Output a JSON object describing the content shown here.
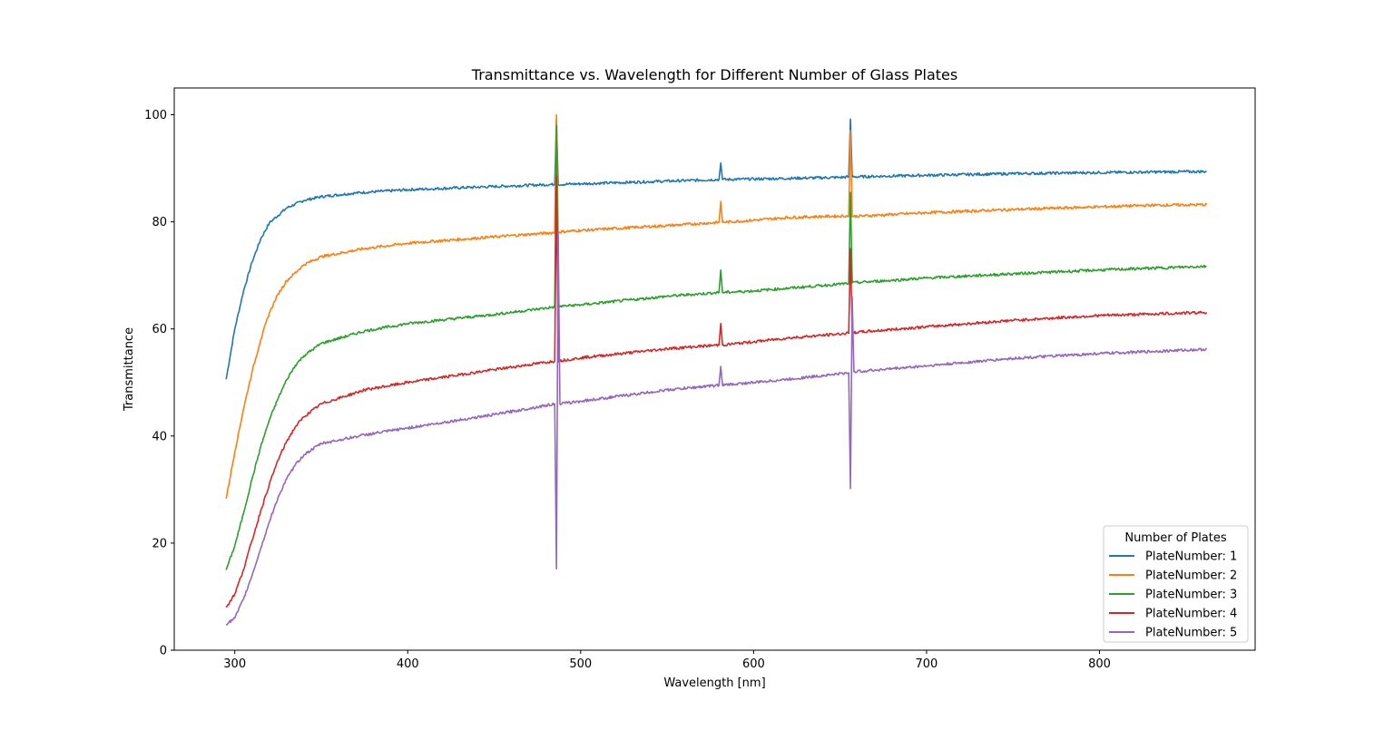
{
  "chart_data": {
    "type": "line",
    "title": "Transmittance vs. Wavelength for Different Number of Glass Plates",
    "xlabel": "Wavelength [nm]",
    "ylabel": "Transmittance",
    "xlim": [
      265,
      890
    ],
    "ylim": [
      0,
      105
    ],
    "xticks": [
      "300",
      "400",
      "500",
      "600",
      "700",
      "800"
    ],
    "yticks": [
      "0",
      "20",
      "40",
      "60",
      "80",
      "100"
    ],
    "grid": false,
    "legend": {
      "title": "Number of Plates",
      "placement": "lower-right"
    },
    "series": [
      {
        "name": "PlateNumber: 1",
        "color": "#1f77b4",
        "points": [
          [
            295,
            50.6
          ],
          [
            300,
            60
          ],
          [
            305,
            67
          ],
          [
            310,
            72.5
          ],
          [
            315,
            76.8
          ],
          [
            320,
            79.8
          ],
          [
            330,
            82.6
          ],
          [
            340,
            84
          ],
          [
            350,
            84.7
          ],
          [
            370,
            85.4
          ],
          [
            400,
            86
          ],
          [
            450,
            86.6
          ],
          [
            485,
            87
          ],
          [
            486,
            99
          ],
          [
            487,
            87
          ],
          [
            500,
            87.1
          ],
          [
            550,
            87.6
          ],
          [
            580,
            87.9
          ],
          [
            581,
            91
          ],
          [
            582,
            87.9
          ],
          [
            600,
            88
          ],
          [
            650,
            88.3
          ],
          [
            655,
            88.4
          ],
          [
            656,
            99.2
          ],
          [
            657,
            88.4
          ],
          [
            700,
            88.7
          ],
          [
            750,
            89
          ],
          [
            800,
            89.2
          ],
          [
            862,
            89.4
          ]
        ]
      },
      {
        "name": "PlateNumber: 2",
        "color": "#ff7f0e",
        "points": [
          [
            295,
            28.3
          ],
          [
            300,
            37
          ],
          [
            305,
            45
          ],
          [
            310,
            52
          ],
          [
            315,
            58
          ],
          [
            320,
            63
          ],
          [
            325,
            66.5
          ],
          [
            330,
            69
          ],
          [
            340,
            72
          ],
          [
            350,
            73.5
          ],
          [
            375,
            75
          ],
          [
            400,
            76
          ],
          [
            450,
            77.2
          ],
          [
            485,
            78
          ],
          [
            486,
            100
          ],
          [
            487,
            78.1
          ],
          [
            500,
            78.4
          ],
          [
            550,
            79.3
          ],
          [
            580,
            79.9
          ],
          [
            581,
            83.8
          ],
          [
            582,
            79.9
          ],
          [
            600,
            80.3
          ],
          [
            620,
            80.8
          ],
          [
            640,
            81
          ],
          [
            655,
            81.1
          ],
          [
            656,
            97
          ],
          [
            657,
            81
          ],
          [
            700,
            81.7
          ],
          [
            750,
            82.3
          ],
          [
            800,
            82.8
          ],
          [
            830,
            83.1
          ],
          [
            862,
            83.2
          ]
        ]
      },
      {
        "name": "PlateNumber: 3",
        "color": "#2ca02c",
        "points": [
          [
            295,
            15
          ],
          [
            300,
            19.5
          ],
          [
            305,
            25.5
          ],
          [
            310,
            32
          ],
          [
            315,
            38
          ],
          [
            320,
            43
          ],
          [
            325,
            47
          ],
          [
            330,
            50.5
          ],
          [
            335,
            53.2
          ],
          [
            340,
            55
          ],
          [
            350,
            57.3
          ],
          [
            375,
            59.6
          ],
          [
            400,
            61
          ],
          [
            450,
            62.7
          ],
          [
            485,
            64.1
          ],
          [
            486,
            98
          ],
          [
            487,
            64.2
          ],
          [
            500,
            64.5
          ],
          [
            550,
            66.1
          ],
          [
            580,
            66.8
          ],
          [
            581,
            71
          ],
          [
            582,
            66.8
          ],
          [
            600,
            67.1
          ],
          [
            620,
            67.6
          ],
          [
            655,
            68.5
          ],
          [
            656,
            85.5
          ],
          [
            657,
            68.6
          ],
          [
            700,
            69.5
          ],
          [
            750,
            70.3
          ],
          [
            800,
            71
          ],
          [
            862,
            71.7
          ]
        ]
      },
      {
        "name": "PlateNumber: 4",
        "color": "#d62728",
        "points": [
          [
            295,
            8
          ],
          [
            300,
            10.5
          ],
          [
            305,
            15
          ],
          [
            310,
            20.5
          ],
          [
            315,
            26
          ],
          [
            320,
            31
          ],
          [
            325,
            35.5
          ],
          [
            330,
            39
          ],
          [
            335,
            41.7
          ],
          [
            340,
            43.6
          ],
          [
            350,
            46
          ],
          [
            375,
            48.6
          ],
          [
            400,
            50
          ],
          [
            450,
            52.4
          ],
          [
            485,
            54
          ],
          [
            486,
            88.5
          ],
          [
            487,
            54
          ],
          [
            500,
            54.6
          ],
          [
            550,
            56.3
          ],
          [
            580,
            57
          ],
          [
            581,
            61
          ],
          [
            582,
            57
          ],
          [
            600,
            57.6
          ],
          [
            620,
            58.3
          ],
          [
            655,
            59.2
          ],
          [
            656,
            75
          ],
          [
            657,
            59.3
          ],
          [
            700,
            60.4
          ],
          [
            750,
            61.6
          ],
          [
            800,
            62.5
          ],
          [
            862,
            63.1
          ]
        ]
      },
      {
        "name": "PlateNumber: 5",
        "color": "#9467bd",
        "points": [
          [
            295,
            4.8
          ],
          [
            300,
            6
          ],
          [
            305,
            9.5
          ],
          [
            310,
            14
          ],
          [
            315,
            19
          ],
          [
            320,
            24
          ],
          [
            325,
            28.5
          ],
          [
            330,
            32
          ],
          [
            335,
            34.6
          ],
          [
            340,
            36.5
          ],
          [
            350,
            38.6
          ],
          [
            375,
            40.2
          ],
          [
            400,
            41.5
          ],
          [
            450,
            44
          ],
          [
            485,
            46
          ],
          [
            486,
            15.2
          ],
          [
            487,
            78
          ],
          [
            488,
            46
          ],
          [
            500,
            46.5
          ],
          [
            550,
            48.6
          ],
          [
            580,
            49.5
          ],
          [
            581,
            53
          ],
          [
            582,
            49.5
          ],
          [
            600,
            50
          ],
          [
            620,
            50.6
          ],
          [
            655,
            51.8
          ],
          [
            656,
            30.2
          ],
          [
            657,
            66
          ],
          [
            658,
            52
          ],
          [
            700,
            53.1
          ],
          [
            750,
            54.5
          ],
          [
            800,
            55.4
          ],
          [
            862,
            56.2
          ]
        ]
      }
    ]
  }
}
